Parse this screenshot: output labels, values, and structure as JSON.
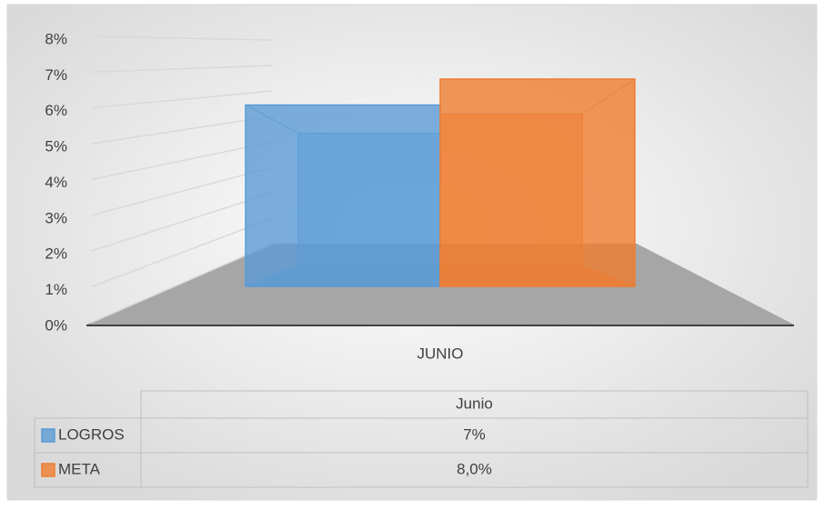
{
  "chart_data": {
    "type": "bar3d",
    "categories": [
      "JUNIO"
    ],
    "table_header": "Junio",
    "series": [
      {
        "name": "LOGROS",
        "color": "#5b9bd5",
        "values": [
          7
        ],
        "value_labels": [
          "7%"
        ]
      },
      {
        "name": "META",
        "color": "#ed7d31",
        "values": [
          8
        ],
        "value_labels": [
          "8,0%"
        ]
      }
    ],
    "ylim": [
      0,
      8
    ],
    "yticks": [
      {
        "value": 0,
        "label": "0%"
      },
      {
        "value": 1,
        "label": "1%"
      },
      {
        "value": 2,
        "label": "2%"
      },
      {
        "value": 3,
        "label": "3%"
      },
      {
        "value": 4,
        "label": "4%"
      },
      {
        "value": 5,
        "label": "5%"
      },
      {
        "value": 6,
        "label": "6%"
      },
      {
        "value": 7,
        "label": "7%"
      },
      {
        "value": 8,
        "label": "8%"
      }
    ],
    "grid": true
  }
}
